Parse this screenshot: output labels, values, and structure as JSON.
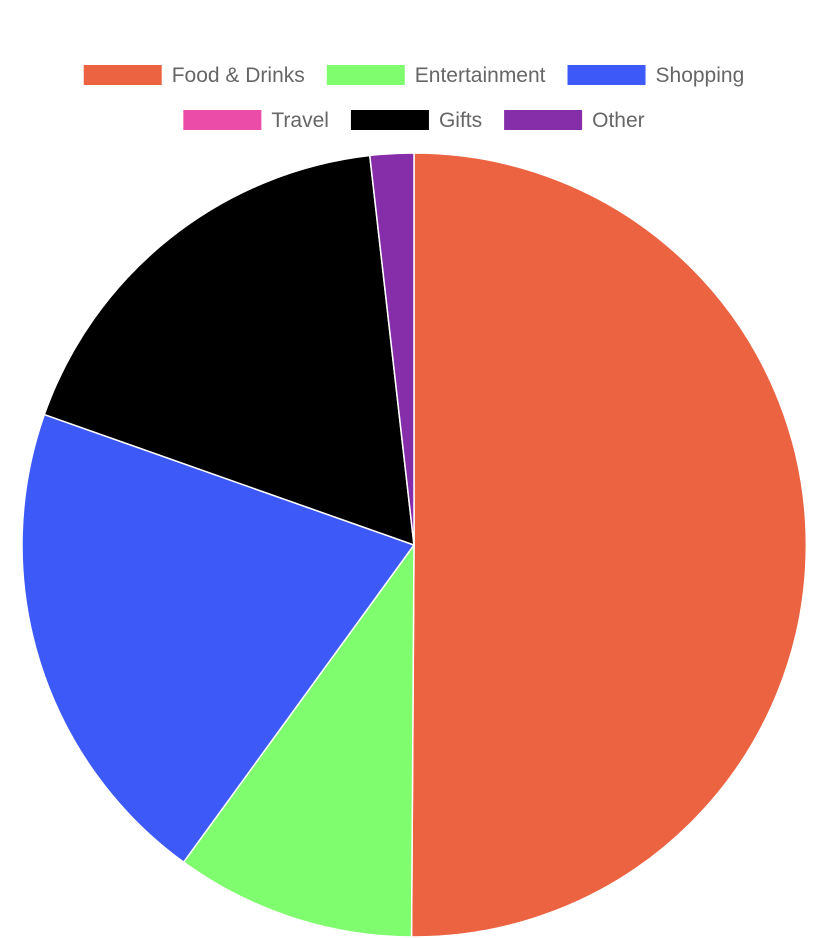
{
  "chart_data": {
    "type": "pie",
    "title": "",
    "start_angle_deg": 0,
    "direction": "clockwise",
    "legend_position": "top",
    "slice_border_color": "#ffffff",
    "series": [
      {
        "name": "Food & Drinks",
        "value": 50.1,
        "color": "#EB6341"
      },
      {
        "name": "Entertainment",
        "value": 9.9,
        "color": "#80FC6F"
      },
      {
        "name": "Shopping",
        "value": 20.4,
        "color": "#3D59F7"
      },
      {
        "name": "Travel",
        "value": 0,
        "color": "#EA4CA8"
      },
      {
        "name": "Gifts",
        "value": 17.8,
        "color": "#000000"
      },
      {
        "name": "Other",
        "value": 1.8,
        "color": "#862DA9"
      }
    ]
  }
}
